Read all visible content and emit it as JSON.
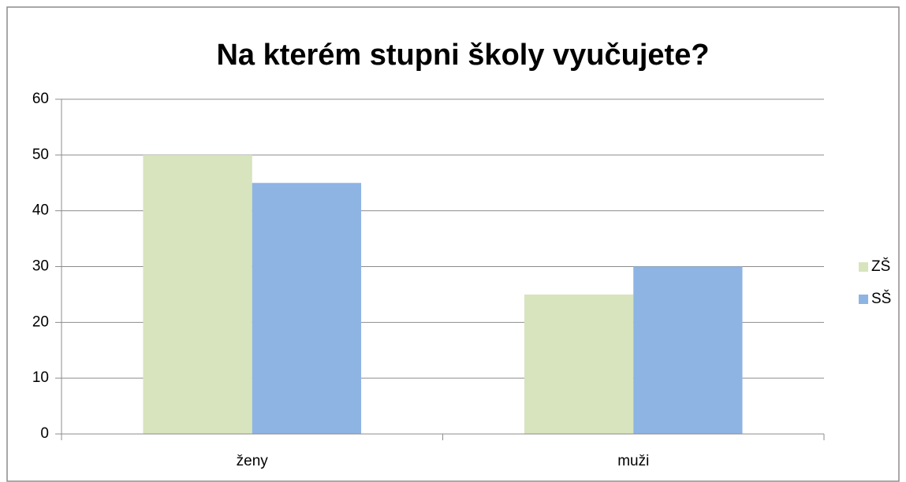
{
  "chart_data": {
    "type": "bar",
    "title": "Na kterém stupni školy vyučujete?",
    "categories": [
      "ženy",
      "muži"
    ],
    "series": [
      {
        "name": "ZŠ",
        "color": "#d7e4bd",
        "values": [
          50,
          25
        ]
      },
      {
        "name": "SŠ",
        "color": "#8eb4e3",
        "values": [
          45,
          30
        ]
      }
    ],
    "ylim": [
      0,
      60
    ],
    "yticks": [
      0,
      10,
      20,
      30,
      40,
      50,
      60
    ],
    "grid": true,
    "legend": "right"
  }
}
